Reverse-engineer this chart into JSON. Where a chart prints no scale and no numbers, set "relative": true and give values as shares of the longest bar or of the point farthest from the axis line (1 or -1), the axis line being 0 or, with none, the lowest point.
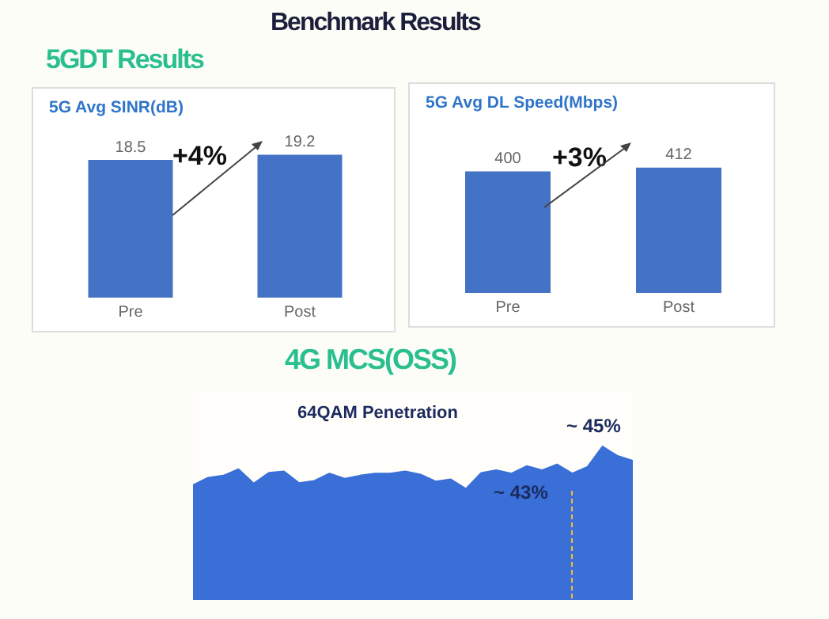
{
  "chart_data": [
    {
      "type": "bar",
      "title": "5G Avg SINR(dB)",
      "categories": [
        "Pre",
        "Post"
      ],
      "values": [
        18.5,
        19.2
      ],
      "color": "#4472c4",
      "data_labels": true,
      "annotations": [
        "Benchmark Results",
        "5GDT Results",
        "+4%"
      ]
    },
    {
      "type": "bar",
      "title": "5G Avg DL Speed(Mbps)",
      "categories": [
        "Pre",
        "Post"
      ],
      "values": [
        400,
        412
      ],
      "color": "#4472c4",
      "data_labels": true,
      "annotations": [
        "+3%"
      ]
    },
    {
      "type": "area",
      "title": "4G MCS(OSS)",
      "subtitle": "64QAM Penetration",
      "relative": true,
      "color": "#3a6fd8",
      "categories": [
        null,
        null,
        null,
        null,
        null,
        null,
        null,
        null,
        null,
        null,
        null,
        null,
        null,
        null,
        null,
        null,
        null,
        null,
        null,
        null,
        null,
        null,
        null,
        null,
        null,
        null,
        null,
        null,
        null,
        null
      ],
      "values": [
        0.748,
        0.797,
        0.81,
        0.852,
        0.759,
        0.828,
        0.838,
        0.762,
        0.776,
        0.824,
        0.79,
        0.81,
        0.824,
        0.824,
        0.838,
        0.817,
        0.772,
        0.786,
        0.724,
        0.828,
        0.845,
        0.824,
        0.872,
        0.845,
        0.883,
        0.824,
        0.866,
        1,
        0.938,
        0.907
      ],
      "annotations": [
        "~ 45%",
        "~ 43%"
      ]
    }
  ]
}
